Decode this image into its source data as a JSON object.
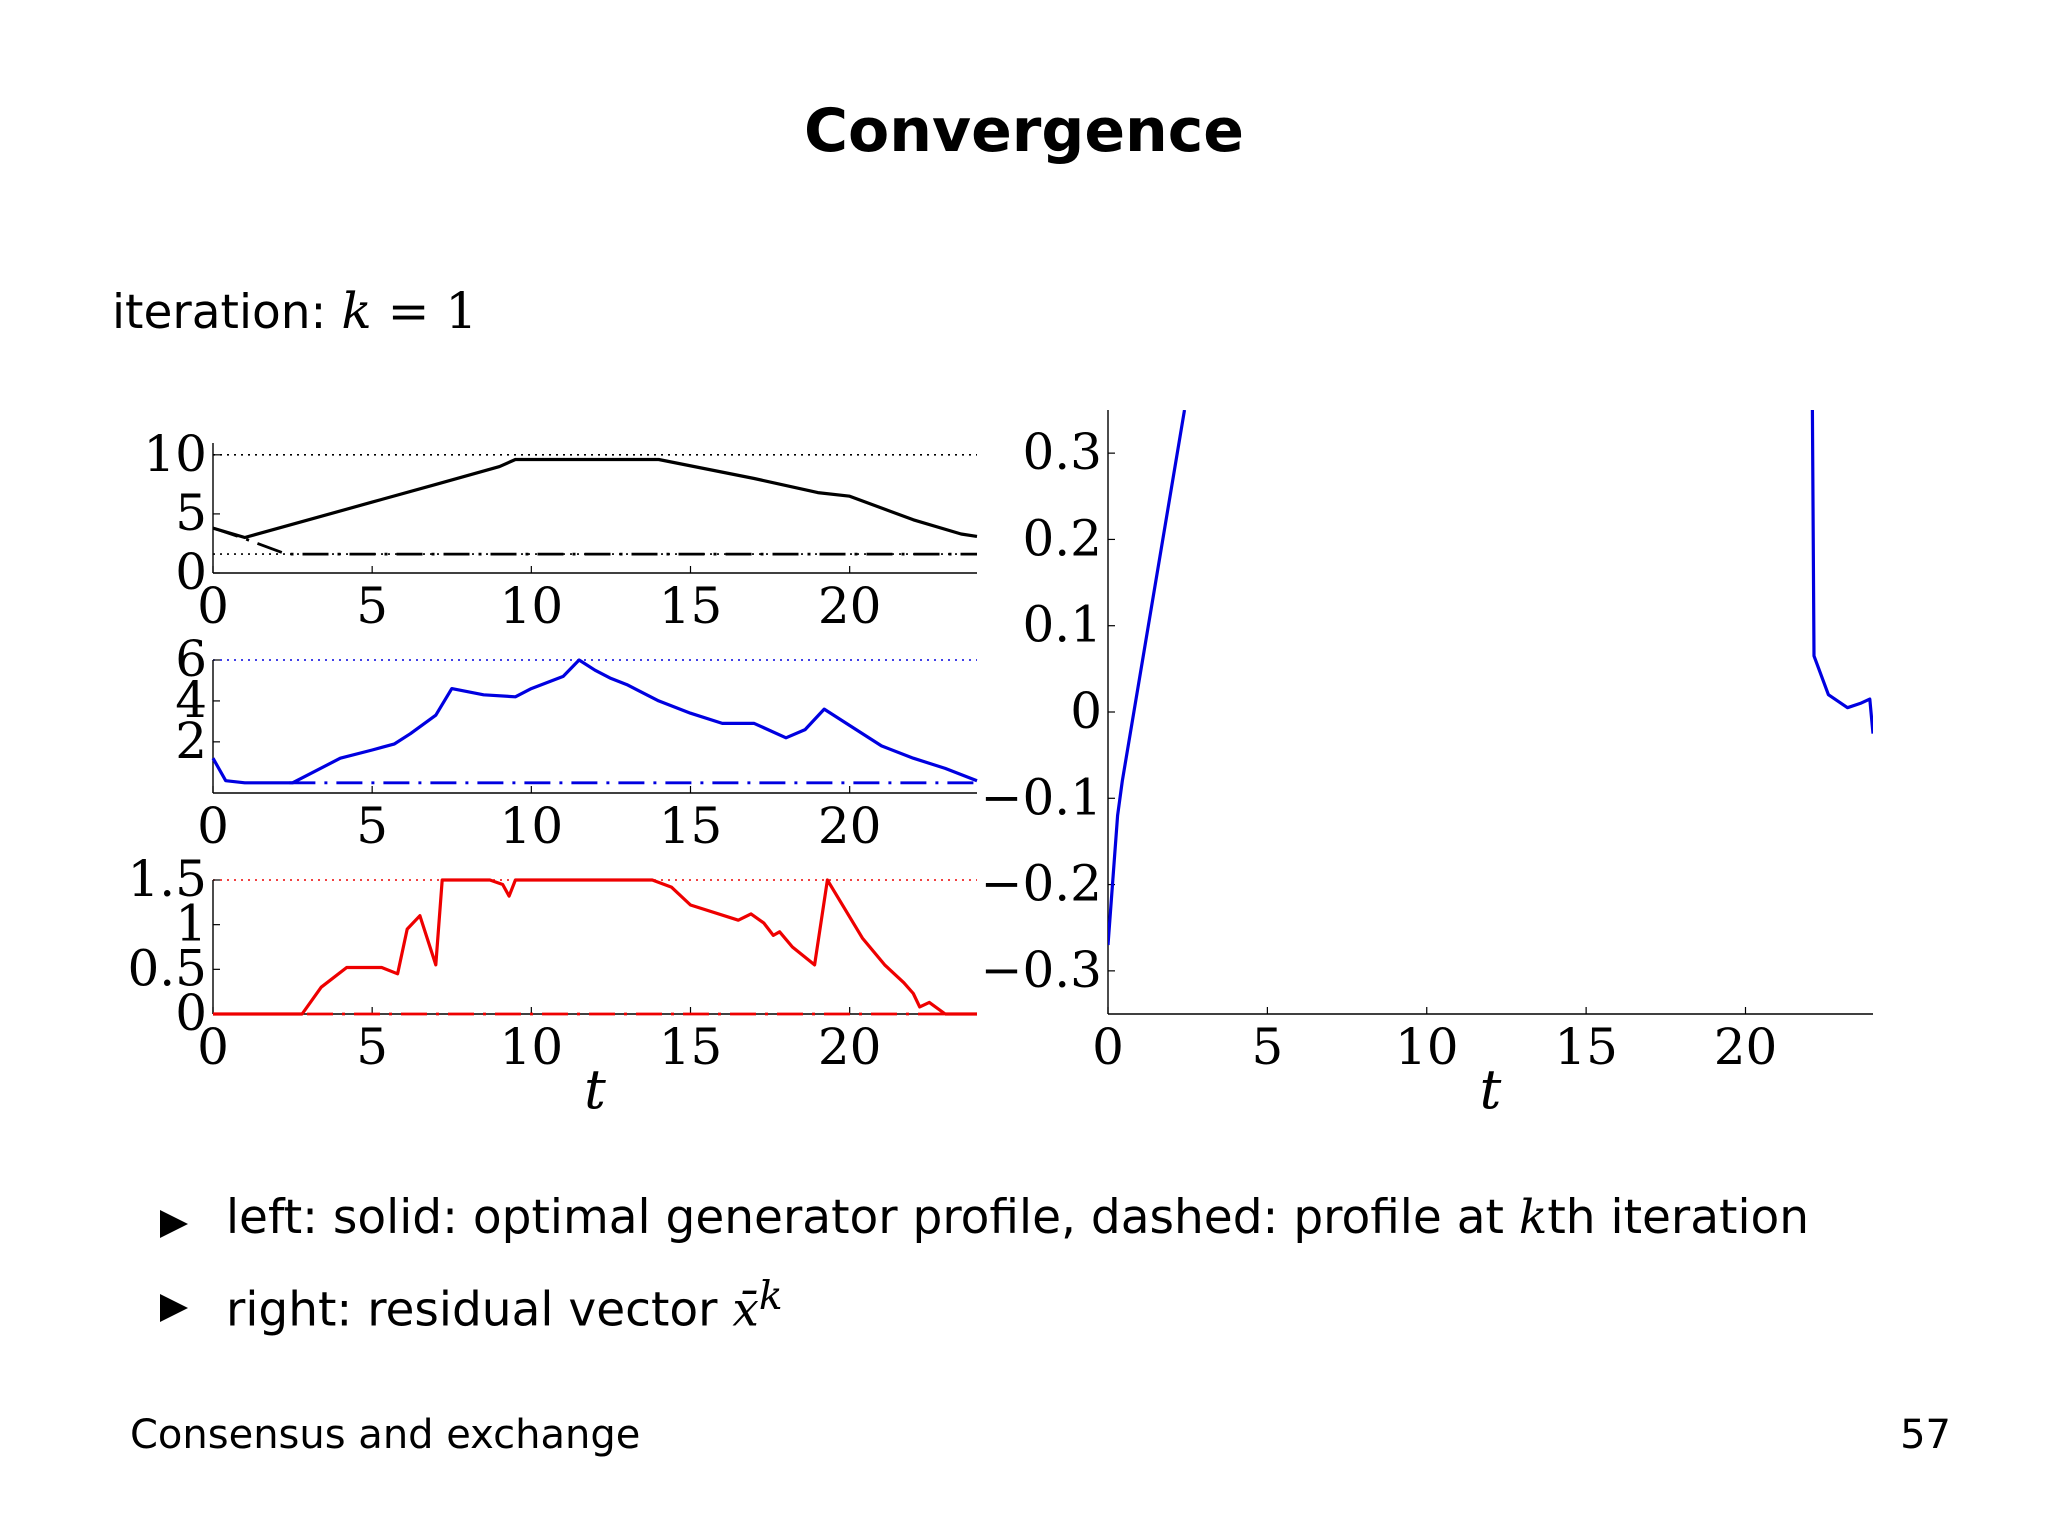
{
  "slide": {
    "title": "Convergence",
    "iteration_label": "iteration:",
    "iteration_var": "k",
    "iteration_eq": " = 1",
    "footer_left": "Consensus and exchange",
    "page_number": "57"
  },
  "bullets": [
    {
      "pre": "left: solid: optimal generator profile, dashed: profile at ",
      "var": "k",
      "post": "th iteration"
    },
    {
      "pre": "right: residual vector ",
      "var": "x̄",
      "sup": "k",
      "post": ""
    }
  ],
  "chart_data": [
    {
      "type": "line",
      "panel": "left-top",
      "color": "#000000",
      "xlim": [
        0,
        24
      ],
      "ylim": [
        0,
        11
      ],
      "xticks": [
        0,
        5,
        10,
        15,
        20
      ],
      "yticks": [
        0,
        5,
        10
      ],
      "xlabel": "",
      "limit_lines": [
        10,
        1.6
      ],
      "series": [
        {
          "style": "solid",
          "x": [
            0,
            1,
            3,
            5,
            7,
            9,
            9.5,
            14,
            17,
            19,
            20,
            22,
            23.5,
            24
          ],
          "y": [
            3.8,
            3.0,
            4.5,
            6.0,
            7.5,
            9.0,
            9.6,
            9.6,
            8.0,
            6.8,
            6.5,
            4.5,
            3.3,
            3.1
          ]
        },
        {
          "style": "dashed",
          "x": [
            0,
            1,
            2.3,
            24
          ],
          "y": [
            3.8,
            2.9,
            1.6,
            1.6
          ]
        }
      ]
    },
    {
      "type": "line",
      "panel": "left-middle",
      "color": "#0000e0",
      "xlim": [
        0,
        24
      ],
      "ylim": [
        -0.5,
        6
      ],
      "xticks": [
        0,
        5,
        10,
        15,
        20
      ],
      "yticks": [
        2,
        4,
        6
      ],
      "xlabel": "",
      "limit_lines": [
        6,
        0
      ],
      "series": [
        {
          "style": "solid",
          "x": [
            0,
            0.4,
            1,
            2.5,
            4,
            5,
            5.7,
            6.2,
            7,
            7.5,
            8.5,
            9.5,
            10,
            11,
            11.5,
            12,
            12.5,
            13,
            14,
            15,
            16,
            17,
            18,
            18.6,
            19.2,
            20,
            21,
            22,
            23,
            24
          ],
          "y": [
            1.2,
            0.1,
            0,
            0,
            1.2,
            1.6,
            1.9,
            2.4,
            3.3,
            4.6,
            4.3,
            4.2,
            4.6,
            5.2,
            6.0,
            5.5,
            5.1,
            4.8,
            4.0,
            3.4,
            2.9,
            2.9,
            2.2,
            2.6,
            3.6,
            2.8,
            1.8,
            1.2,
            0.7,
            0.1
          ]
        },
        {
          "style": "dashed",
          "x": [
            2.4,
            24
          ],
          "y": [
            0,
            0
          ]
        }
      ]
    },
    {
      "type": "line",
      "panel": "left-bottom",
      "color": "#ee0000",
      "xlim": [
        0,
        24
      ],
      "ylim": [
        0,
        1.5
      ],
      "xticks": [
        0,
        5,
        10,
        15,
        20
      ],
      "yticks": [
        0,
        0.5,
        1,
        1.5
      ],
      "ytick_labels": [
        "0",
        "0.5",
        "1",
        "1.5"
      ],
      "xlabel": "t",
      "limit_lines": [
        1.5,
        0
      ],
      "series": [
        {
          "style": "solid",
          "x": [
            0,
            2.8,
            3.4,
            4.2,
            5.3,
            5.8,
            6.1,
            6.5,
            7.0,
            7.2,
            7.4,
            8.7,
            9.1,
            9.3,
            9.5,
            13.8,
            14.4,
            15.0,
            16.5,
            16.9,
            17.3,
            17.6,
            17.8,
            18.2,
            18.9,
            19.3,
            20.4,
            21.1,
            21.7,
            22.0,
            22.2,
            22.5,
            23.0,
            24
          ],
          "y": [
            0,
            0,
            0.3,
            0.52,
            0.52,
            0.45,
            0.95,
            1.1,
            0.55,
            1.5,
            1.5,
            1.5,
            1.45,
            1.32,
            1.5,
            1.5,
            1.42,
            1.22,
            1.05,
            1.12,
            1.02,
            0.88,
            0.92,
            0.75,
            0.55,
            1.5,
            0.85,
            0.55,
            0.35,
            0.23,
            0.08,
            0.13,
            0.0,
            0.0
          ]
        },
        {
          "style": "dashed",
          "x": [
            0,
            24
          ],
          "y": [
            0,
            0
          ]
        }
      ]
    },
    {
      "type": "line",
      "panel": "right",
      "color": "#0000e0",
      "xlim": [
        0,
        24
      ],
      "ylim": [
        -0.35,
        0.35
      ],
      "xticks": [
        0,
        5,
        10,
        15,
        20
      ],
      "yticks": [
        -0.3,
        -0.2,
        -0.1,
        0,
        0.1,
        0.2,
        0.3
      ],
      "ytick_labels": [
        "−0.3",
        "−0.2",
        "−0.1",
        "0",
        "0.1",
        "0.2",
        "0.3"
      ],
      "xlabel": "t",
      "series": [
        {
          "style": "solid",
          "x": [
            0,
            0.3,
            0.45,
            2.4
          ],
          "y": [
            -0.27,
            -0.12,
            -0.08,
            0.35
          ]
        },
        {
          "style": "solid",
          "x": [
            22.1,
            22.15,
            22.6,
            23.2,
            23.6,
            23.9,
            24
          ],
          "y": [
            0.35,
            0.065,
            0.02,
            0.005,
            0.01,
            0.015,
            -0.025
          ]
        }
      ]
    }
  ]
}
